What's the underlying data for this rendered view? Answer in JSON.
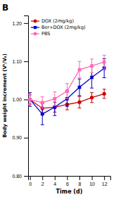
{
  "chart_data": {
    "type": "line",
    "title": "B",
    "xlabel": "Time (d)",
    "ylabel": "Body weight increment (Vᵗ/V₀)",
    "x": [
      0,
      2,
      4,
      6,
      8,
      10,
      12
    ],
    "series": [
      {
        "name": "DOX (2mg/kg)",
        "color": "#cc0000",
        "marker": "circle",
        "values": [
          1.0,
          0.977,
          0.98,
          0.987,
          0.993,
          1.005,
          1.015
        ],
        "errors": [
          0.012,
          0.015,
          0.013,
          0.014,
          0.015,
          0.013,
          0.012
        ]
      },
      {
        "name": "Ber+DOX (2mg/kg)",
        "color": "#0000cc",
        "marker": "square",
        "values": [
          1.0,
          0.962,
          0.98,
          1.002,
          1.032,
          1.058,
          1.082
        ],
        "errors": [
          0.018,
          0.028,
          0.022,
          0.02,
          0.022,
          0.028,
          0.025
        ]
      },
      {
        "name": "PBS",
        "color": "#ff69b4",
        "marker": "square",
        "values": [
          1.0,
          0.992,
          1.002,
          1.022,
          1.078,
          1.088,
          1.098
        ],
        "errors": [
          0.013,
          0.015,
          0.018,
          0.02,
          0.022,
          0.018,
          0.018
        ]
      }
    ],
    "xlim": [
      -0.3,
      13
    ],
    "ylim": [
      0.8,
      1.22
    ],
    "xticks": [
      0,
      2,
      4,
      6,
      8,
      10,
      12
    ],
    "yticks": [
      {
        "value": 0.8,
        "label": "0.80"
      },
      {
        "value": 0.9,
        "label": "0.90"
      },
      {
        "value": 1.0,
        "label": "1.00"
      },
      {
        "value": 1.1,
        "label": "1.10"
      },
      {
        "value": 1.2,
        "label": "1.20"
      }
    ],
    "grid": false,
    "legend": "upper-left"
  }
}
